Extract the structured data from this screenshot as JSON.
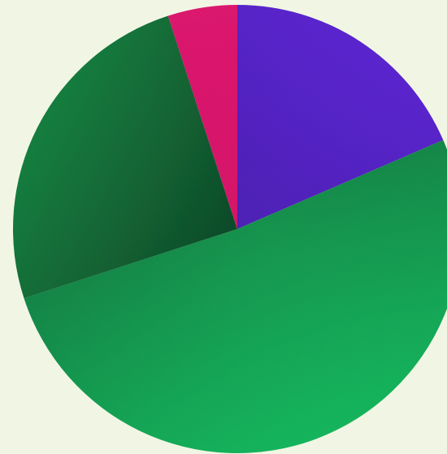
{
  "background_color": "#f1f6e4",
  "chart_data": {
    "type": "pie",
    "start_angle_deg": 0,
    "direction": "clockwise",
    "legend": "none",
    "slices": [
      {
        "value": 18.5,
        "color": "#6228e0",
        "color_deep": "#4a1fae"
      },
      {
        "value": 51.5,
        "color": "#17c465",
        "color_deep": "#138a4a"
      },
      {
        "value": 25.0,
        "color": "#178a45",
        "color_deep": "#0f3f24"
      },
      {
        "value": 5.0,
        "color": "#ef1a78",
        "color_deep": "#d41468"
      }
    ]
  }
}
